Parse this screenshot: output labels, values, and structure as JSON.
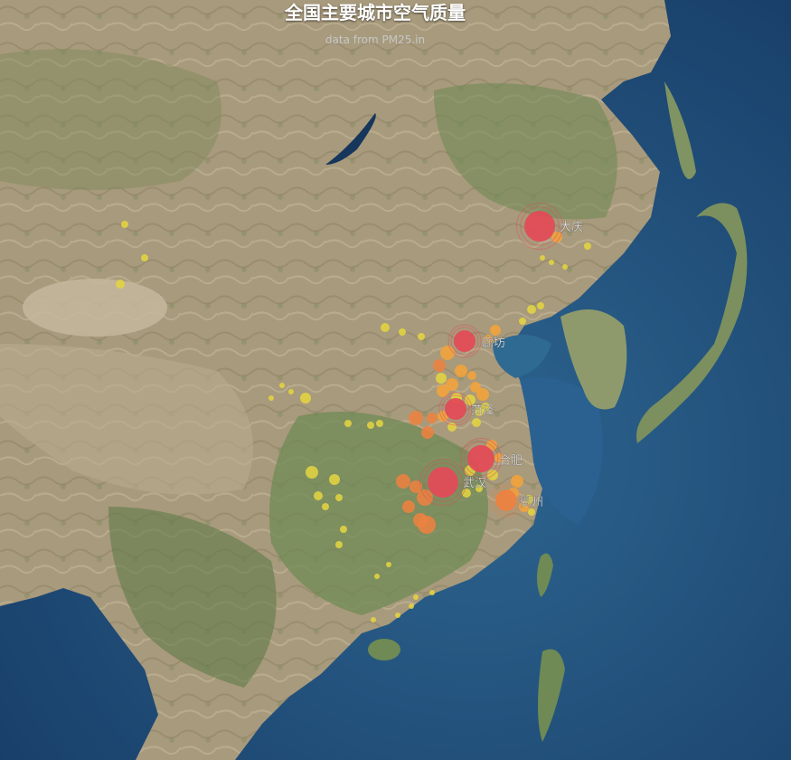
{
  "title": "全国主要城市空气质量",
  "subtitle": "data from PM25.in",
  "colors": {
    "ocean_deep": "#18426e",
    "ocean": "#275a86",
    "shelf": "#4f8aa8",
    "land_green": "#6f8a55",
    "land_dry": "#b2a283",
    "plateau": "#c6b79d",
    "level_low": "#e3d441",
    "level_mid": "#f2a33b",
    "level_orange": "#ec8241",
    "level_high": "#e24c57",
    "label": "#ffffff"
  },
  "map": {
    "region": "China",
    "style": "satellite imagery"
  },
  "labeled_cities": [
    {
      "name": "大庆",
      "level": "high"
    },
    {
      "name": "廊坊",
      "level": "high"
    },
    {
      "name": "菏泽",
      "level": "high"
    },
    {
      "name": "合肥",
      "level": "high"
    },
    {
      "name": "武汉",
      "level": "high"
    },
    {
      "name": "衢州",
      "level": "orange"
    }
  ]
}
